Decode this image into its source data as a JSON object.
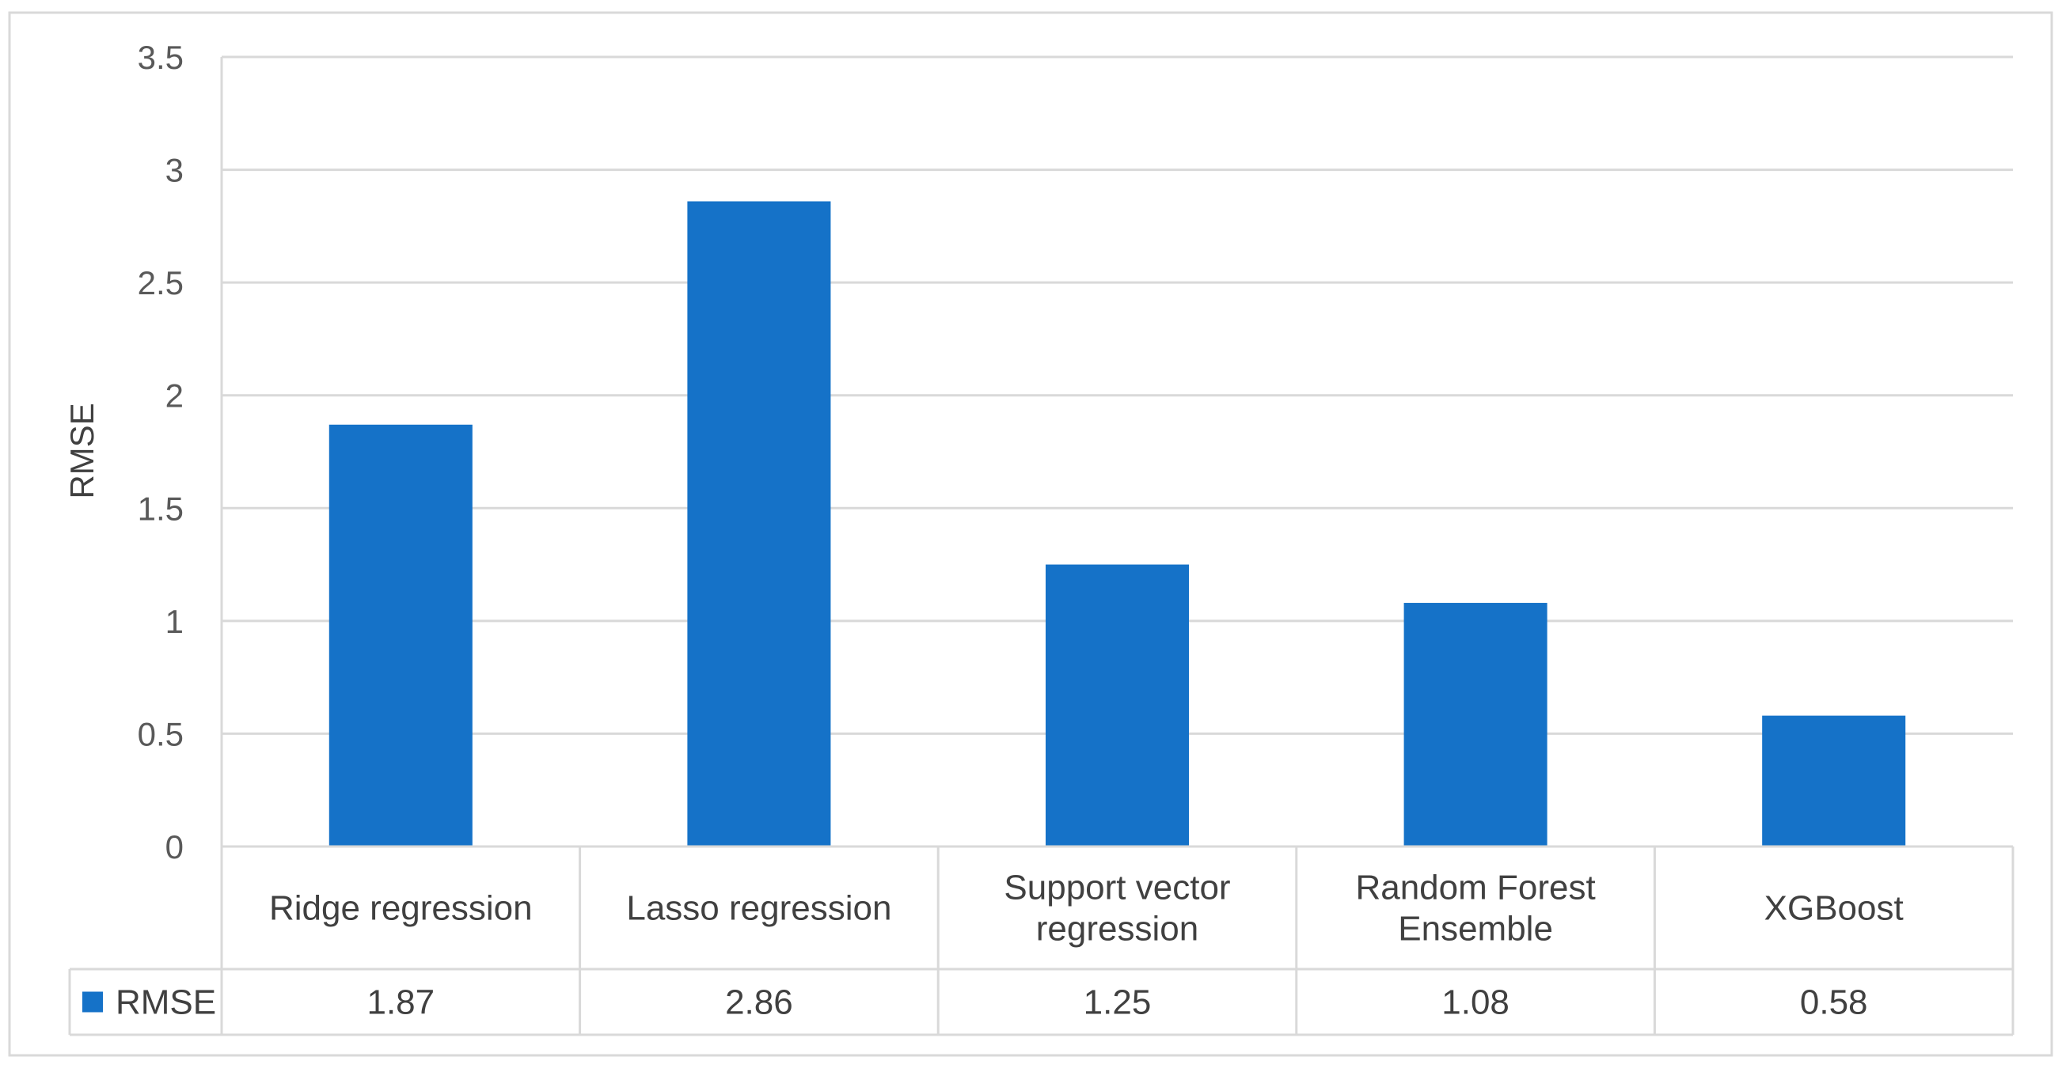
{
  "chart_data": {
    "type": "bar",
    "categories": [
      [
        "Ridge regression"
      ],
      [
        "Lasso regression"
      ],
      [
        "Support vector",
        "regression"
      ],
      [
        "Random Forest",
        "Ensemble"
      ],
      [
        "XGBoost"
      ]
    ],
    "series": [
      {
        "name": "RMSE",
        "values": [
          1.87,
          2.86,
          1.25,
          1.08,
          0.58
        ],
        "display_values": [
          "1.87",
          "2.86",
          "1.25",
          "1.08",
          "0.58"
        ],
        "color": "#1572C8"
      }
    ],
    "ylabel": "RMSE",
    "ylim": [
      0,
      3.5
    ],
    "yticks": [
      "0",
      "0.5",
      "1",
      "1.5",
      "2",
      "2.5",
      "3",
      "3.5"
    ],
    "grid": true,
    "legend": "data-table",
    "data_table": true
  },
  "colors": {
    "bar": "#1572C8",
    "grid": "#d9d9d9",
    "frame": "#d9d9d9"
  }
}
